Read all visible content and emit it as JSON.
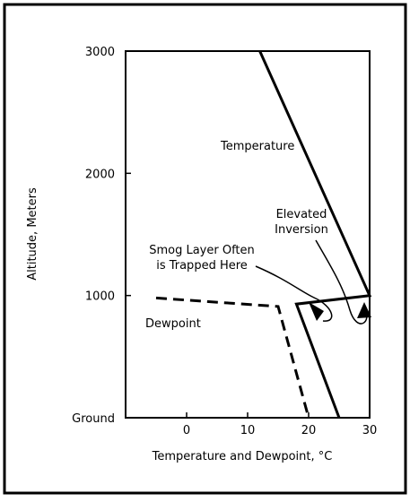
{
  "chart_data": {
    "type": "line",
    "xlabel": "Temperature and Dewpoint, °C",
    "ylabel": "Altitude, Meters",
    "xlim": [
      -10,
      30
    ],
    "ylim": [
      0,
      3000
    ],
    "x_ticks": [
      {
        "value": 0,
        "label": "0"
      },
      {
        "value": 10,
        "label": "10"
      },
      {
        "value": 20,
        "label": "20"
      },
      {
        "value": 30,
        "label": "30"
      }
    ],
    "y_ticks": [
      {
        "value": 0,
        "label": "Ground"
      },
      {
        "value": 1000,
        "label": "1000"
      },
      {
        "value": 2000,
        "label": "2000"
      },
      {
        "value": 3000,
        "label": "3000"
      }
    ],
    "grid": false,
    "series": [
      {
        "name": "Temperature",
        "style": "solid",
        "color": "#000000",
        "points": [
          {
            "x": 25,
            "y": 0
          },
          {
            "x": 18,
            "y": 930
          },
          {
            "x": 30,
            "y": 1000
          },
          {
            "x": 12,
            "y": 3000
          }
        ]
      },
      {
        "name": "Dewpoint",
        "style": "dashed",
        "color": "#000000",
        "points": [
          {
            "x": -5,
            "y": 980
          },
          {
            "x": 15,
            "y": 910
          },
          {
            "x": 20,
            "y": 0
          }
        ]
      }
    ],
    "annotations": [
      {
        "key": "smog",
        "lines": [
          "Smog Layer Often",
          "is Trapped Here"
        ]
      },
      {
        "key": "inversion",
        "lines": [
          "Elevated",
          "Inversion"
        ]
      }
    ]
  }
}
